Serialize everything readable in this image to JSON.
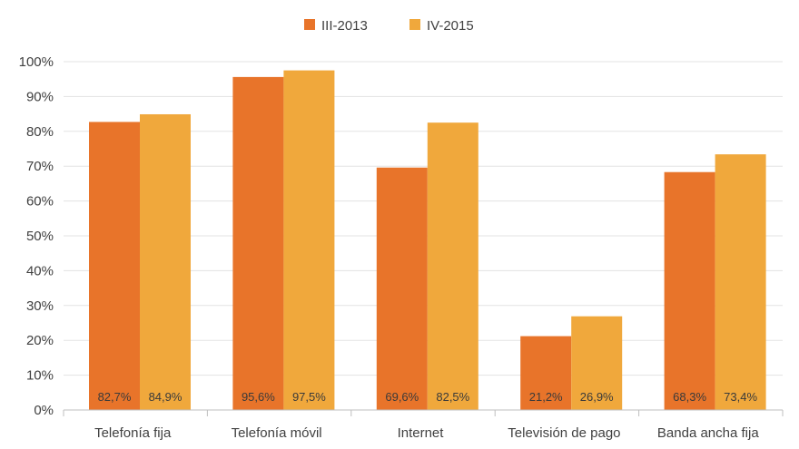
{
  "chart_data": {
    "type": "bar",
    "title": "",
    "xlabel": "",
    "ylabel": "",
    "ylim": [
      0,
      100
    ],
    "yticks": [
      0,
      10,
      20,
      30,
      40,
      50,
      60,
      70,
      80,
      90,
      100
    ],
    "ytick_labels": [
      "0%",
      "10%",
      "20%",
      "30%",
      "40%",
      "50%",
      "60%",
      "70%",
      "80%",
      "90%",
      "100%"
    ],
    "categories": [
      "Telefonía fija",
      "Telefonía móvil",
      "Internet",
      "Televisión de pago",
      "Banda ancha fija"
    ],
    "series": [
      {
        "name": "III-2013",
        "color": "#E8742A",
        "values": [
          82.7,
          95.6,
          69.6,
          21.2,
          68.3
        ],
        "labels": [
          "82,7%",
          "95,6%",
          "69,6%",
          "21,2%",
          "68,3%"
        ]
      },
      {
        "name": "IV-2015",
        "color": "#F0A83C",
        "values": [
          84.9,
          97.5,
          82.5,
          26.9,
          73.4
        ],
        "labels": [
          "84,9%",
          "97,5%",
          "82,5%",
          "26,9%",
          "73,4%"
        ]
      }
    ],
    "legend_position": "top-center",
    "grid": true
  }
}
